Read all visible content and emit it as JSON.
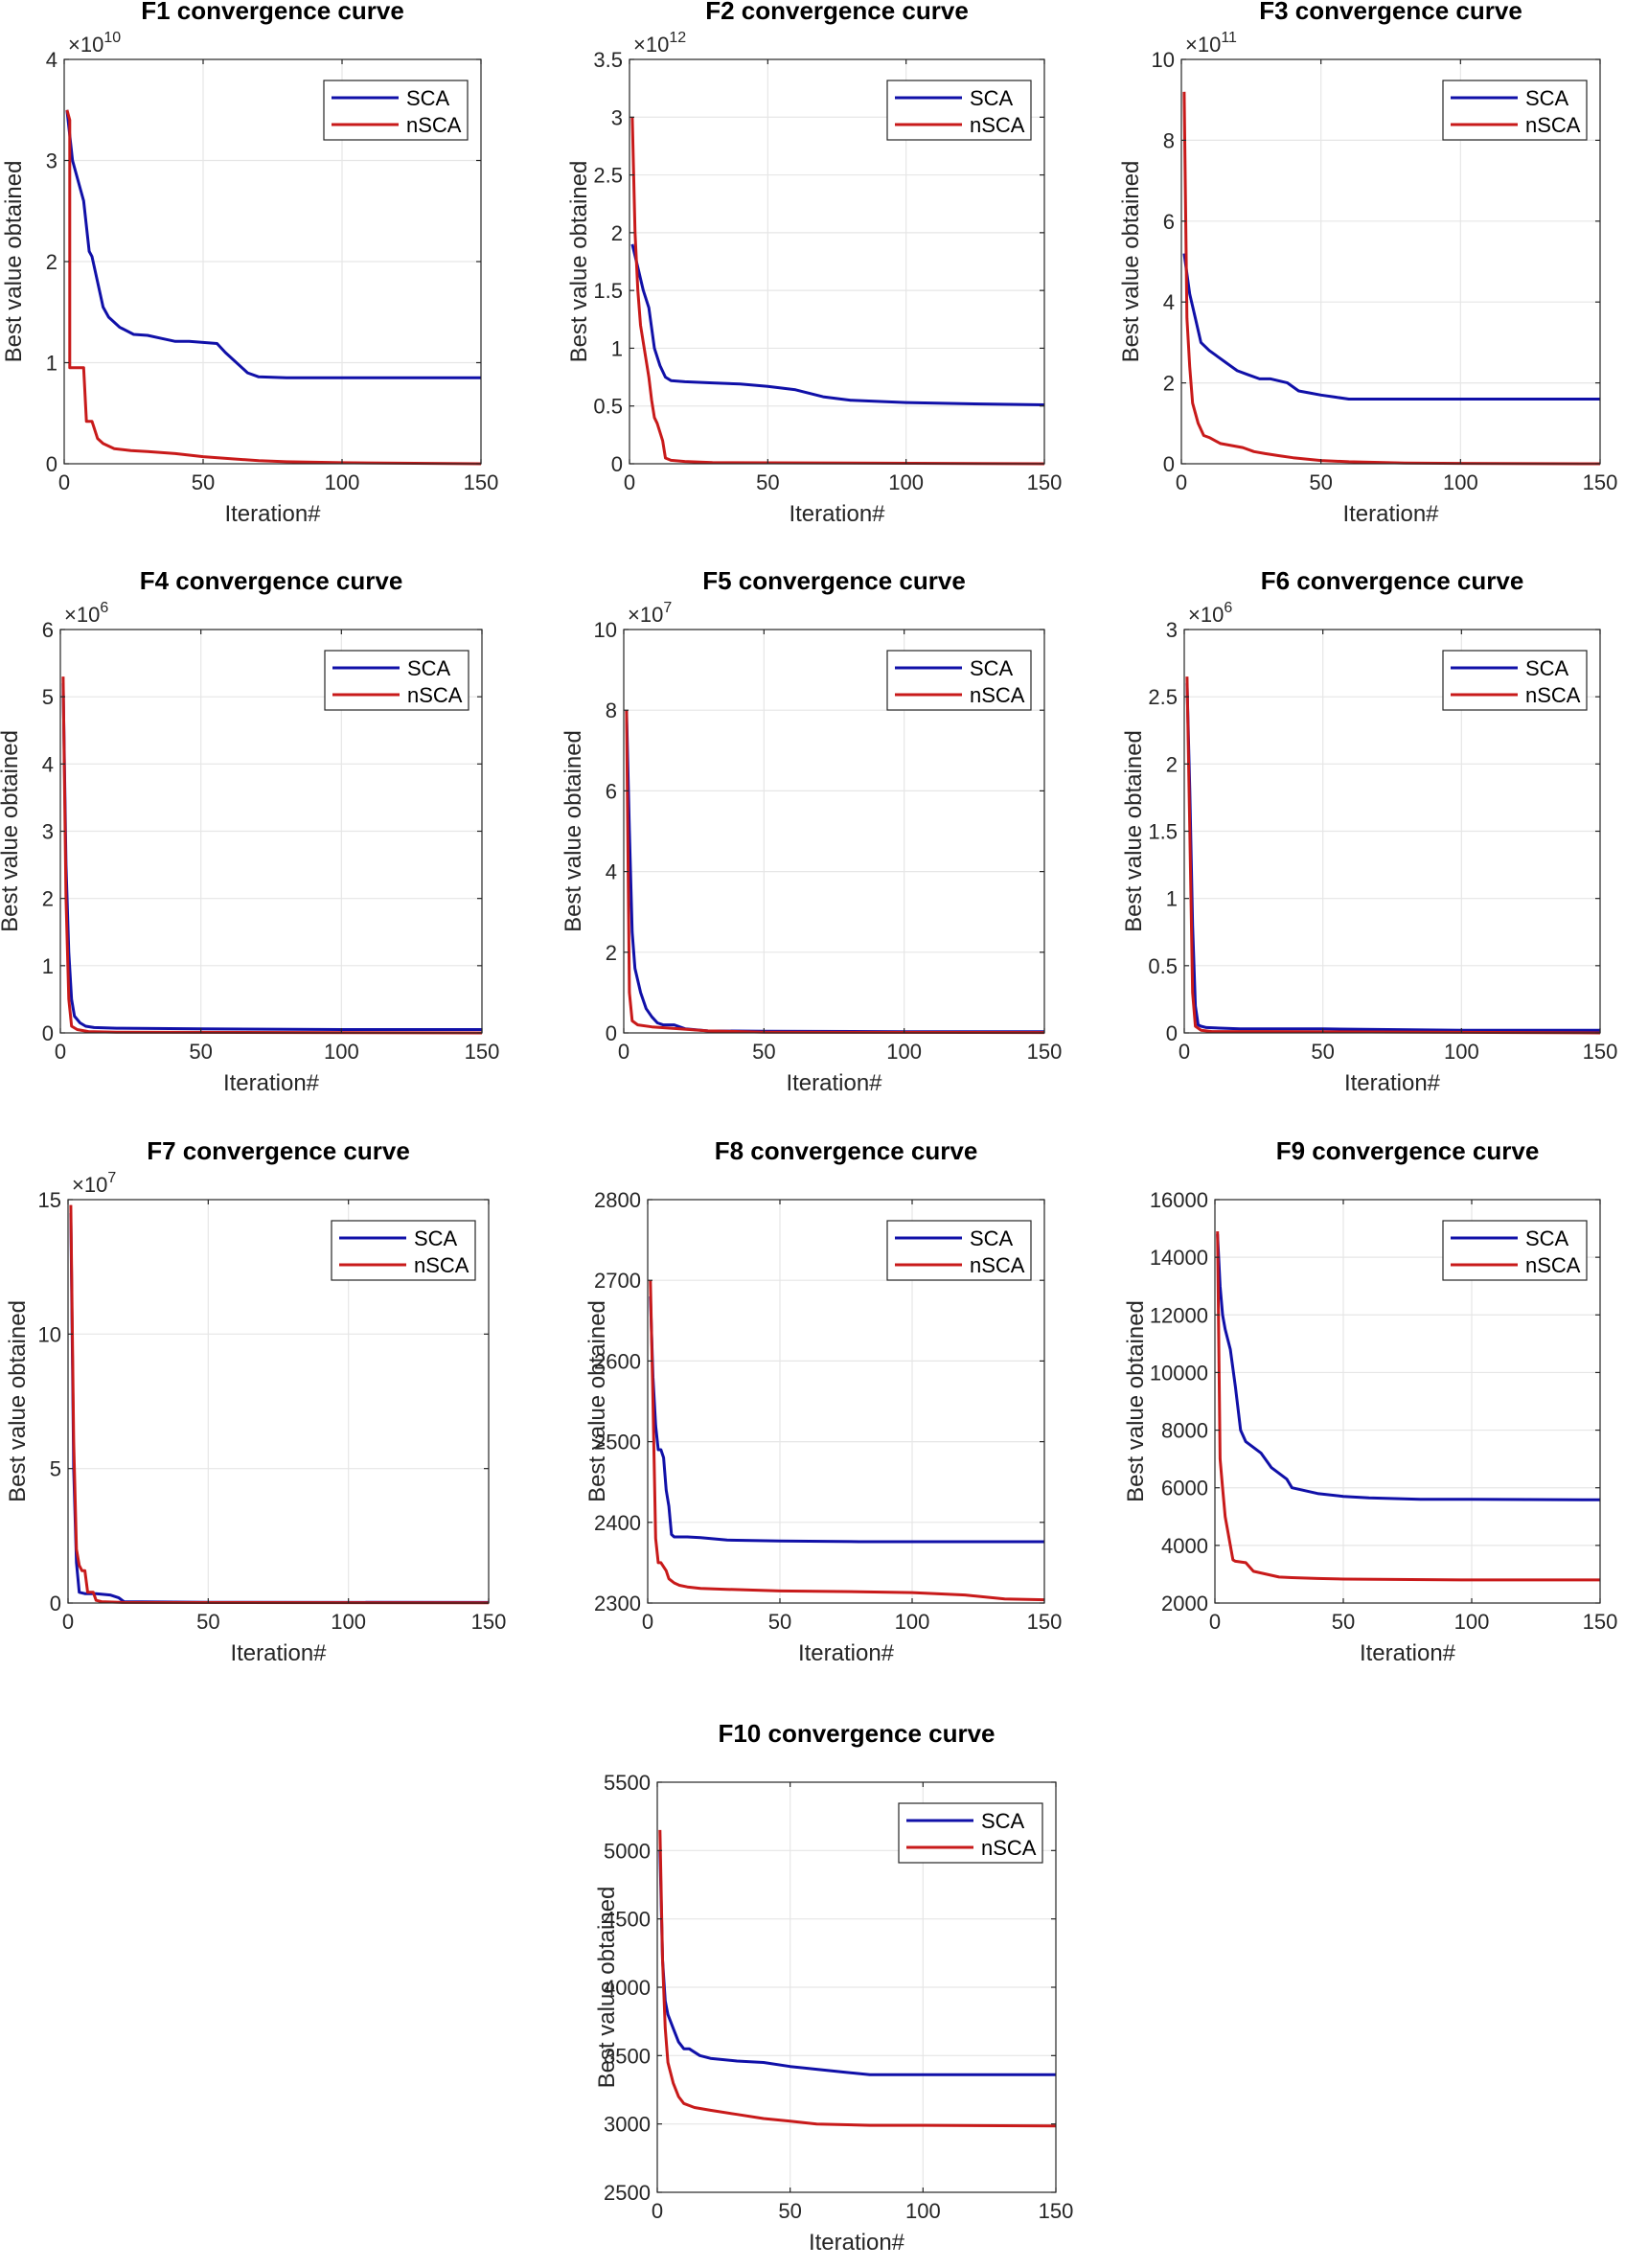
{
  "series_colors": {
    "SCA": "#1010a8",
    "nSCA": "#c81a1a"
  },
  "chart_data": [
    {
      "type": "line",
      "title": "F1 convergence curve",
      "xlabel": "Iteration#",
      "ylabel": "Best value obtained",
      "xlim": [
        0,
        150
      ],
      "ylim": [
        0,
        4
      ],
      "y_ticks": [
        "0",
        "1",
        "2",
        "3",
        "4"
      ],
      "y_ticks_values": [
        0,
        1,
        2,
        3,
        4
      ],
      "x_ticks": [
        "0",
        "50",
        "100",
        "150"
      ],
      "exponent": "10",
      "legend": [
        "SCA",
        "nSCA"
      ],
      "series": [
        {
          "name": "SCA",
          "x": [
            1,
            3,
            5,
            7,
            9,
            10,
            12,
            14,
            16,
            20,
            25,
            30,
            35,
            40,
            45,
            50,
            55,
            58,
            62,
            66,
            70,
            80,
            100,
            150
          ],
          "y": [
            3.5,
            3.0,
            2.8,
            2.6,
            2.1,
            2.05,
            1.8,
            1.55,
            1.45,
            1.35,
            1.28,
            1.27,
            1.24,
            1.21,
            1.21,
            1.2,
            1.19,
            1.1,
            1.0,
            0.9,
            0.86,
            0.85,
            0.85,
            0.85
          ]
        },
        {
          "name": "nSCA",
          "x": [
            1,
            2,
            2,
            5,
            7,
            8,
            10,
            12,
            14,
            18,
            24,
            30,
            40,
            50,
            60,
            70,
            80,
            100,
            150
          ],
          "y": [
            3.5,
            3.4,
            0.95,
            0.95,
            0.95,
            0.42,
            0.42,
            0.25,
            0.2,
            0.15,
            0.13,
            0.12,
            0.1,
            0.07,
            0.05,
            0.03,
            0.02,
            0.01,
            0.0
          ]
        }
      ]
    },
    {
      "type": "line",
      "title": "F2 convergence curve",
      "xlabel": "Iteration#",
      "ylabel": "Best value obtained",
      "xlim": [
        0,
        150
      ],
      "ylim": [
        0,
        3.5
      ],
      "y_ticks": [
        "0",
        "0.5",
        "1",
        "1.5",
        "2",
        "2.5",
        "3",
        "3.5"
      ],
      "y_ticks_values": [
        0,
        0.5,
        1,
        1.5,
        2,
        2.5,
        3,
        3.5
      ],
      "x_ticks": [
        "0",
        "50",
        "100",
        "150"
      ],
      "exponent": "12",
      "legend": [
        "SCA",
        "nSCA"
      ],
      "series": [
        {
          "name": "SCA",
          "x": [
            1,
            3,
            5,
            7,
            9,
            11,
            13,
            15,
            20,
            30,
            40,
            50,
            60,
            70,
            80,
            100,
            120,
            150
          ],
          "y": [
            1.9,
            1.7,
            1.5,
            1.35,
            1.0,
            0.85,
            0.75,
            0.72,
            0.71,
            0.7,
            0.69,
            0.67,
            0.64,
            0.58,
            0.55,
            0.53,
            0.52,
            0.51
          ]
        },
        {
          "name": "nSCA",
          "x": [
            1,
            2,
            3,
            4,
            6,
            7,
            8,
            9,
            10,
            12,
            13,
            15,
            20,
            30,
            150
          ],
          "y": [
            3.0,
            2.0,
            1.5,
            1.2,
            0.9,
            0.75,
            0.55,
            0.4,
            0.35,
            0.2,
            0.05,
            0.03,
            0.02,
            0.01,
            0.0
          ]
        }
      ]
    },
    {
      "type": "line",
      "title": "F3 convergence curve",
      "xlabel": "Iteration#",
      "ylabel": "Best value obtained",
      "xlim": [
        0,
        150
      ],
      "ylim": [
        0,
        10
      ],
      "y_ticks": [
        "0",
        "2",
        "4",
        "6",
        "8",
        "10"
      ],
      "y_ticks_values": [
        0,
        2,
        4,
        6,
        8,
        10
      ],
      "x_ticks": [
        "0",
        "50",
        "100",
        "150"
      ],
      "exponent": "11",
      "legend": [
        "SCA",
        "nSCA"
      ],
      "series": [
        {
          "name": "SCA",
          "x": [
            1,
            3,
            5,
            7,
            10,
            12,
            16,
            20,
            24,
            28,
            32,
            38,
            42,
            46,
            50,
            55,
            60,
            80,
            100,
            150
          ],
          "y": [
            5.2,
            4.2,
            3.6,
            3.0,
            2.8,
            2.7,
            2.5,
            2.3,
            2.2,
            2.1,
            2.1,
            2.0,
            1.8,
            1.75,
            1.7,
            1.65,
            1.6,
            1.6,
            1.6,
            1.6
          ]
        },
        {
          "name": "nSCA",
          "x": [
            1,
            2,
            3,
            4,
            6,
            8,
            10,
            14,
            18,
            22,
            26,
            30,
            35,
            40,
            50,
            60,
            80,
            100,
            150
          ],
          "y": [
            9.2,
            3.6,
            2.4,
            1.5,
            1.0,
            0.7,
            0.65,
            0.5,
            0.45,
            0.4,
            0.3,
            0.25,
            0.2,
            0.15,
            0.08,
            0.05,
            0.02,
            0.01,
            0.0
          ]
        }
      ]
    },
    {
      "type": "line",
      "title": "F4 convergence curve",
      "xlabel": "Iteration#",
      "ylabel": "Best value obtained",
      "xlim": [
        0,
        150
      ],
      "ylim": [
        0,
        6
      ],
      "y_ticks": [
        "0",
        "1",
        "2",
        "3",
        "4",
        "5",
        "6"
      ],
      "y_ticks_values": [
        0,
        1,
        2,
        3,
        4,
        5,
        6
      ],
      "x_ticks": [
        "0",
        "50",
        "100",
        "150"
      ],
      "exponent": "6",
      "legend": [
        "SCA",
        "nSCA"
      ],
      "series": [
        {
          "name": "SCA",
          "x": [
            1,
            2,
            3,
            4,
            5,
            7,
            9,
            12,
            20,
            50,
            100,
            150
          ],
          "y": [
            5.2,
            2.5,
            1.2,
            0.5,
            0.25,
            0.15,
            0.1,
            0.08,
            0.07,
            0.06,
            0.05,
            0.05
          ]
        },
        {
          "name": "nSCA",
          "x": [
            1,
            2,
            3,
            4,
            6,
            10,
            20,
            150
          ],
          "y": [
            5.3,
            2.0,
            0.5,
            0.1,
            0.05,
            0.02,
            0.01,
            0.0
          ]
        }
      ]
    },
    {
      "type": "line",
      "title": "F5 convergence curve",
      "xlabel": "Iteration#",
      "ylabel": "Best value obtained",
      "xlim": [
        0,
        150
      ],
      "ylim": [
        0,
        10
      ],
      "y_ticks": [
        "0",
        "2",
        "4",
        "6",
        "8",
        "10"
      ],
      "y_ticks_values": [
        0,
        2,
        4,
        6,
        8,
        10
      ],
      "x_ticks": [
        "0",
        "50",
        "100",
        "150"
      ],
      "exponent": "7",
      "legend": [
        "SCA",
        "nSCA"
      ],
      "series": [
        {
          "name": "SCA",
          "x": [
            1,
            2,
            3,
            4,
            6,
            8,
            10,
            12,
            14,
            18,
            22,
            30,
            50,
            100,
            150
          ],
          "y": [
            8.0,
            5.0,
            2.5,
            1.6,
            1.0,
            0.6,
            0.4,
            0.25,
            0.2,
            0.2,
            0.1,
            0.05,
            0.04,
            0.03,
            0.03
          ]
        },
        {
          "name": "nSCA",
          "x": [
            1,
            2,
            3,
            5,
            10,
            20,
            30,
            50,
            150
          ],
          "y": [
            8.0,
            1.0,
            0.3,
            0.2,
            0.15,
            0.1,
            0.05,
            0.02,
            0.01
          ]
        }
      ]
    },
    {
      "type": "line",
      "title": "F6 convergence curve",
      "xlabel": "Iteration#",
      "ylabel": "Best value obtained",
      "xlim": [
        0,
        150
      ],
      "ylim": [
        0,
        3
      ],
      "y_ticks": [
        "0",
        "0.5",
        "1",
        "1.5",
        "2",
        "2.5",
        "3"
      ],
      "y_ticks_values": [
        0,
        0.5,
        1,
        1.5,
        2,
        2.5,
        3
      ],
      "x_ticks": [
        "0",
        "50",
        "100",
        "150"
      ],
      "exponent": "6",
      "legend": [
        "SCA",
        "nSCA"
      ],
      "series": [
        {
          "name": "SCA",
          "x": [
            1,
            2,
            3,
            4,
            5,
            6,
            8,
            20,
            50,
            100,
            150
          ],
          "y": [
            2.6,
            1.8,
            0.8,
            0.2,
            0.06,
            0.05,
            0.04,
            0.03,
            0.03,
            0.02,
            0.02
          ]
        },
        {
          "name": "nSCA",
          "x": [
            1,
            2,
            3,
            4,
            6,
            10,
            30,
            150
          ],
          "y": [
            2.65,
            1.5,
            0.3,
            0.05,
            0.02,
            0.01,
            0.01,
            0.0
          ]
        }
      ]
    },
    {
      "type": "line",
      "title": "F7 convergence curve",
      "xlabel": "Iteration#",
      "ylabel": "Best value obtained",
      "xlim": [
        0,
        150
      ],
      "ylim": [
        0,
        15
      ],
      "y_ticks": [
        "0",
        "5",
        "10",
        "15"
      ],
      "y_ticks_values": [
        0,
        5,
        10,
        15
      ],
      "x_ticks": [
        "0",
        "50",
        "100",
        "150"
      ],
      "exponent": "7",
      "legend": [
        "SCA",
        "nSCA"
      ],
      "series": [
        {
          "name": "SCA",
          "x": [
            1,
            2,
            3,
            4,
            6,
            10,
            15,
            18,
            20,
            50,
            150
          ],
          "y": [
            14.5,
            5.0,
            1.5,
            0.4,
            0.35,
            0.35,
            0.3,
            0.2,
            0.05,
            0.03,
            0.02
          ]
        },
        {
          "name": "nSCA",
          "x": [
            1,
            2,
            3,
            4,
            5,
            6,
            7,
            9,
            10,
            12,
            20,
            150
          ],
          "y": [
            14.8,
            6.0,
            2.0,
            1.4,
            1.2,
            1.2,
            0.4,
            0.4,
            0.1,
            0.05,
            0.02,
            0.01
          ]
        }
      ]
    },
    {
      "type": "line",
      "title": "F8 convergence curve",
      "xlabel": "Iteration#",
      "ylabel": "Best value obtained",
      "xlim": [
        0,
        150
      ],
      "ylim": [
        2300,
        2800
      ],
      "y_ticks": [
        "2300",
        "2400",
        "2500",
        "2600",
        "2700",
        "2800"
      ],
      "y_ticks_values": [
        2300,
        2400,
        2500,
        2600,
        2700,
        2800
      ],
      "x_ticks": [
        "0",
        "50",
        "100",
        "150"
      ],
      "exponent": "",
      "legend": [
        "SCA",
        "nSCA"
      ],
      "series": [
        {
          "name": "SCA",
          "x": [
            1,
            2,
            3,
            4,
            5,
            6,
            7,
            8,
            9,
            10,
            15,
            20,
            30,
            50,
            80,
            100,
            150
          ],
          "y": [
            2680,
            2580,
            2520,
            2490,
            2490,
            2480,
            2440,
            2420,
            2385,
            2382,
            2382,
            2381,
            2378,
            2377,
            2376,
            2376,
            2376
          ]
        },
        {
          "name": "nSCA",
          "x": [
            1,
            2,
            3,
            4,
            5,
            7,
            8,
            10,
            12,
            15,
            20,
            30,
            50,
            80,
            100,
            120,
            135,
            150
          ],
          "y": [
            2700,
            2550,
            2380,
            2350,
            2350,
            2340,
            2330,
            2325,
            2322,
            2320,
            2318,
            2317,
            2315,
            2314,
            2313,
            2310,
            2305,
            2304
          ]
        }
      ]
    },
    {
      "type": "line",
      "title": "F9 convergence curve",
      "xlabel": "Iteration#",
      "ylabel": "Best value obtained",
      "xlim": [
        0,
        150
      ],
      "ylim": [
        2000,
        16000
      ],
      "y_ticks": [
        "2000",
        "4000",
        "6000",
        "8000",
        "10000",
        "12000",
        "14000",
        "16000"
      ],
      "y_ticks_values": [
        2000,
        4000,
        6000,
        8000,
        10000,
        12000,
        14000,
        16000
      ],
      "x_ticks": [
        "0",
        "50",
        "100",
        "150"
      ],
      "exponent": "",
      "legend": [
        "SCA",
        "nSCA"
      ],
      "series": [
        {
          "name": "SCA",
          "x": [
            1,
            2,
            3,
            4,
            6,
            8,
            10,
            12,
            15,
            18,
            22,
            25,
            28,
            30,
            35,
            40,
            50,
            60,
            80,
            100,
            150
          ],
          "y": [
            14800,
            13000,
            12000,
            11500,
            10800,
            9500,
            8000,
            7600,
            7400,
            7200,
            6700,
            6500,
            6300,
            6000,
            5900,
            5800,
            5700,
            5650,
            5600,
            5600,
            5580
          ]
        },
        {
          "name": "nSCA",
          "x": [
            1,
            2,
            3,
            4,
            5,
            6,
            7,
            8,
            12,
            15,
            20,
            25,
            30,
            40,
            50,
            100,
            150
          ],
          "y": [
            14900,
            7000,
            6000,
            5000,
            4500,
            4000,
            3500,
            3450,
            3400,
            3100,
            3000,
            2900,
            2880,
            2850,
            2830,
            2800,
            2800
          ]
        }
      ]
    },
    {
      "type": "line",
      "title": "F10 convergence curve",
      "xlabel": "Iteration#",
      "ylabel": "Best value obtained",
      "xlim": [
        0,
        150
      ],
      "ylim": [
        2500,
        5500
      ],
      "y_ticks": [
        "2500",
        "3000",
        "3500",
        "4000",
        "4500",
        "5000",
        "5500"
      ],
      "y_ticks_values": [
        2500,
        3000,
        3500,
        4000,
        4500,
        5000,
        5500
      ],
      "x_ticks": [
        "0",
        "50",
        "100",
        "150"
      ],
      "exponent": "",
      "legend": [
        "SCA",
        "nSCA"
      ],
      "series": [
        {
          "name": "SCA",
          "x": [
            1,
            2,
            3,
            4,
            6,
            8,
            10,
            12,
            16,
            20,
            30,
            40,
            50,
            60,
            70,
            80,
            100,
            150
          ],
          "y": [
            5000,
            4200,
            3900,
            3800,
            3700,
            3600,
            3550,
            3550,
            3500,
            3480,
            3460,
            3450,
            3420,
            3400,
            3380,
            3360,
            3360,
            3360
          ]
        },
        {
          "name": "nSCA",
          "x": [
            1,
            2,
            3,
            4,
            6,
            8,
            10,
            14,
            20,
            30,
            40,
            50,
            60,
            80,
            100,
            150
          ],
          "y": [
            5150,
            4200,
            3700,
            3450,
            3300,
            3200,
            3150,
            3120,
            3100,
            3070,
            3040,
            3020,
            3000,
            2990,
            2990,
            2985
          ]
        }
      ]
    }
  ]
}
